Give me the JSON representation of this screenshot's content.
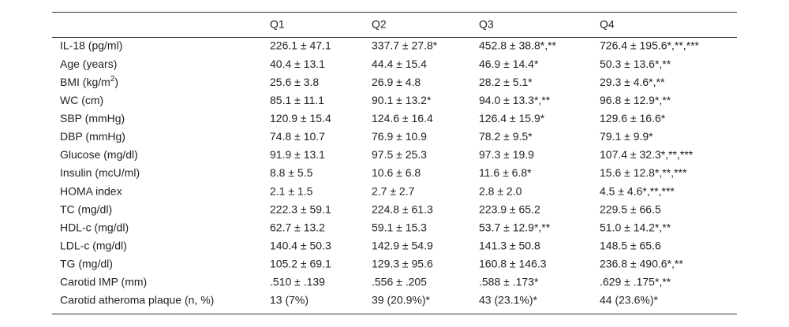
{
  "table": {
    "header": [
      "Q1",
      "Q2",
      "Q3",
      "Q4"
    ],
    "rows": [
      {
        "label": "IL-18 (pg/ml)",
        "cells": [
          "226.1 ± 47.1",
          "337.7 ± 27.8*",
          "452.8 ± 38.8*,**",
          "726.4 ± 195.6*,**,***"
        ]
      },
      {
        "label": "Age (years)",
        "cells": [
          "40.4 ± 13.1",
          "44.4 ± 15.4",
          "46.9 ± 14.4*",
          "50.3 ± 13.6*,**"
        ]
      },
      {
        "label": "BMI (kg/m",
        "label_sup": "2",
        "label_end": ")",
        "cells": [
          "25.6 ± 3.8",
          "26.9 ± 4.8",
          "28.2 ± 5.1*",
          "29.3 ± 4.6*,**"
        ]
      },
      {
        "label": "WC (cm)",
        "cells": [
          "85.1 ± 11.1",
          "90.1 ± 13.2*",
          "94.0 ± 13.3*,**",
          "96.8 ± 12.9*,**"
        ]
      },
      {
        "label": "SBP (mmHg)",
        "cells": [
          "120.9 ± 15.4",
          "124.6 ± 16.4",
          "126.4 ± 15.9*",
          "129.6 ± 16.6*"
        ]
      },
      {
        "label": "DBP (mmHg)",
        "cells": [
          "74.8 ± 10.7",
          "76.9 ± 10.9",
          "78.2 ± 9.5*",
          "79.1 ± 9.9*"
        ]
      },
      {
        "label": "Glucose (mg/dl)",
        "cells": [
          "91.9 ± 13.1",
          "97.5 ± 25.3",
          "97.3 ± 19.9",
          "107.4 ± 32.3*,**,***"
        ]
      },
      {
        "label": "Insulin (mcU/ml)",
        "cells": [
          "8.8 ± 5.5",
          "10.6 ± 6.8",
          "11.6 ± 6.8*",
          "15.6 ± 12.8*,**,***"
        ]
      },
      {
        "label": "HOMA index",
        "cells": [
          "2.1 ± 1.5",
          "2.7 ± 2.7",
          "2.8 ± 2.0",
          "4.5 ± 4.6*,**,***"
        ]
      },
      {
        "label": "TC (mg/dl)",
        "cells": [
          "222.3 ± 59.1",
          "224.8 ± 61.3",
          "223.9 ± 65.2",
          "229.5 ± 66.5"
        ]
      },
      {
        "label": "HDL-c (mg/dl)",
        "cells": [
          "62.7 ± 13.2",
          "59.1 ± 15.3",
          "53.7 ± 12.9*,**",
          "51.0 ± 14.2*,**"
        ]
      },
      {
        "label": "LDL-c (mg/dl)",
        "cells": [
          "140.4 ± 50.3",
          "142.9 ± 54.9",
          "141.3 ± 50.8",
          "148.5 ± 65.6"
        ]
      },
      {
        "label": "TG (mg/dl)",
        "cells": [
          "105.2 ± 69.1",
          "129.3 ± 95.6",
          "160.8 ± 146.3",
          "236.8 ± 490.6*,**"
        ]
      },
      {
        "label": "Carotid IMP (mm)",
        "cells": [
          ".510 ± .139",
          ".556 ± .205",
          ".588 ± .173*",
          ".629 ± .175*,**"
        ]
      },
      {
        "label": "Carotid atheroma plaque (n, %)",
        "cells": [
          "13 (7%)",
          "39 (20.9%)*",
          "43 (23.1%)*",
          "44 (23.6%)*"
        ]
      }
    ]
  }
}
